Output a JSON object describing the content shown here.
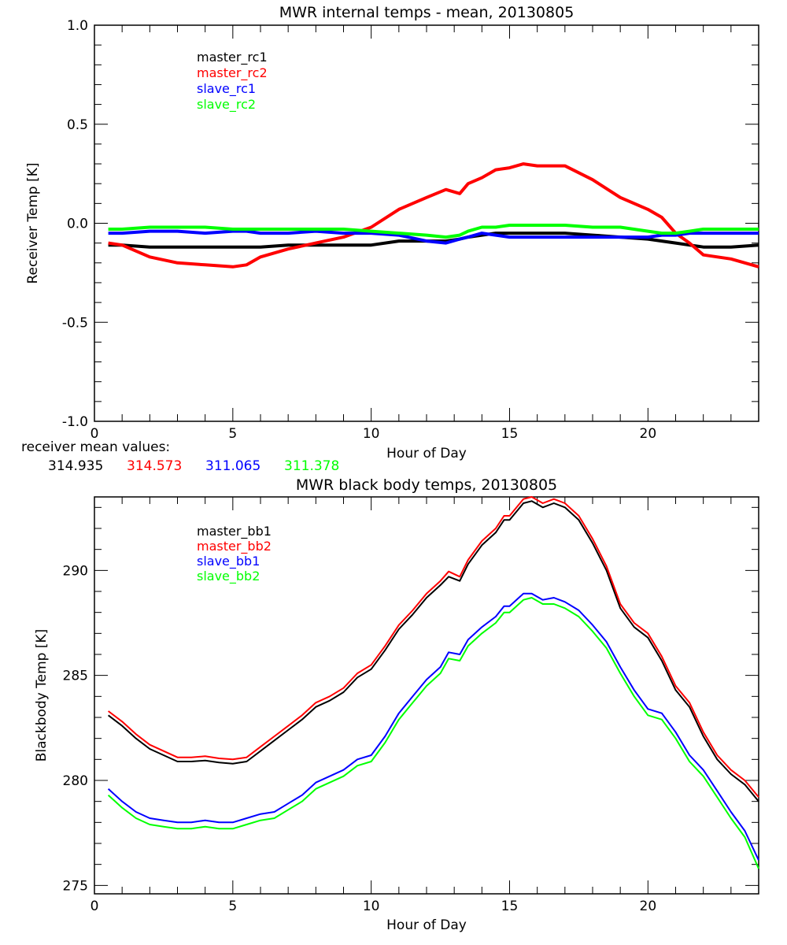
{
  "chart_data": [
    {
      "type": "line",
      "title": "MWR internal temps - mean, 20130805",
      "xlabel": "Hour of Day",
      "ylabel": "Receiver Temp [K]",
      "xlim": [
        0,
        24
      ],
      "ylim": [
        -1.0,
        1.0
      ],
      "xticks": [
        0,
        5,
        10,
        15,
        20
      ],
      "xtick_labels": [
        "0",
        "5",
        "10",
        "15",
        "20"
      ],
      "yticks": [
        -1.0,
        -0.5,
        0.0,
        0.5,
        1.0
      ],
      "ytick_labels": [
        "-1.0",
        "-0.5",
        "0.0",
        "0.5",
        "1.0"
      ],
      "grid": false,
      "legend_position": "top-left",
      "x": [
        0.5,
        1,
        2,
        3,
        4,
        5,
        5.5,
        6,
        7,
        8,
        9,
        10,
        11,
        12,
        12.7,
        13.2,
        13.5,
        14,
        14.5,
        15,
        15.5,
        16,
        17,
        18,
        19,
        20,
        20.5,
        21,
        21.5,
        22,
        23,
        24
      ],
      "series": [
        {
          "name": "master_rc1",
          "color": "#000000",
          "values": [
            -0.11,
            -0.11,
            -0.12,
            -0.12,
            -0.12,
            -0.12,
            -0.12,
            -0.12,
            -0.11,
            -0.11,
            -0.11,
            -0.11,
            -0.09,
            -0.09,
            -0.09,
            -0.08,
            -0.07,
            -0.06,
            -0.05,
            -0.05,
            -0.05,
            -0.05,
            -0.05,
            -0.06,
            -0.07,
            -0.08,
            -0.09,
            -0.1,
            -0.11,
            -0.12,
            -0.12,
            -0.11
          ]
        },
        {
          "name": "master_rc2",
          "color": "#ff0000",
          "values": [
            -0.1,
            -0.11,
            -0.17,
            -0.2,
            -0.21,
            -0.22,
            -0.21,
            -0.17,
            -0.13,
            -0.1,
            -0.07,
            -0.02,
            0.07,
            0.13,
            0.17,
            0.15,
            0.2,
            0.23,
            0.27,
            0.28,
            0.3,
            0.29,
            0.29,
            0.22,
            0.13,
            0.07,
            0.03,
            -0.05,
            -0.1,
            -0.16,
            -0.18,
            -0.22
          ]
        },
        {
          "name": "slave_rc1",
          "color": "#0000ff",
          "values": [
            -0.05,
            -0.05,
            -0.04,
            -0.04,
            -0.05,
            -0.04,
            -0.04,
            -0.05,
            -0.05,
            -0.04,
            -0.05,
            -0.05,
            -0.06,
            -0.09,
            -0.1,
            -0.08,
            -0.07,
            -0.05,
            -0.06,
            -0.07,
            -0.07,
            -0.07,
            -0.07,
            -0.07,
            -0.07,
            -0.07,
            -0.06,
            -0.06,
            -0.05,
            -0.05,
            -0.05,
            -0.05
          ]
        },
        {
          "name": "slave_rc2",
          "color": "#00ff00",
          "values": [
            -0.03,
            -0.03,
            -0.02,
            -0.02,
            -0.02,
            -0.03,
            -0.03,
            -0.03,
            -0.03,
            -0.03,
            -0.03,
            -0.04,
            -0.05,
            -0.06,
            -0.07,
            -0.06,
            -0.04,
            -0.02,
            -0.02,
            -0.01,
            -0.01,
            -0.01,
            -0.01,
            -0.02,
            -0.02,
            -0.04,
            -0.05,
            -0.05,
            -0.04,
            -0.03,
            -0.03,
            -0.03
          ]
        }
      ],
      "footer": {
        "label": "receiver mean values:",
        "values": [
          {
            "text": "314.935",
            "color": "#000000"
          },
          {
            "text": "314.573",
            "color": "#ff0000"
          },
          {
            "text": "311.065",
            "color": "#0000ff"
          },
          {
            "text": "311.378",
            "color": "#00ff00"
          }
        ]
      }
    },
    {
      "type": "line",
      "title": "MWR black body temps, 20130805",
      "xlabel": "Hour of Day",
      "ylabel": "Blackbody Temp [K]",
      "xlim": [
        0,
        24
      ],
      "ylim": [
        274.6,
        293.5
      ],
      "xticks": [
        0,
        5,
        10,
        15,
        20
      ],
      "xtick_labels": [
        "0",
        "5",
        "10",
        "15",
        "20"
      ],
      "yticks": [
        275,
        280,
        285,
        290
      ],
      "ytick_labels": [
        "275",
        "280",
        "285",
        "290"
      ],
      "grid": false,
      "legend_position": "top-left",
      "x": [
        0.5,
        1,
        1.5,
        2,
        2.5,
        3,
        3.5,
        4,
        4.5,
        5,
        5.5,
        6,
        6.5,
        7,
        7.5,
        8,
        8.5,
        9,
        9.5,
        10,
        10.5,
        11,
        11.5,
        12,
        12.5,
        12.8,
        13.2,
        13.5,
        14,
        14.5,
        14.8,
        15,
        15.5,
        15.8,
        16.2,
        16.6,
        17,
        17.5,
        18,
        18.5,
        19,
        19.5,
        20,
        20.5,
        21,
        21.5,
        22,
        22.5,
        23,
        23.5,
        24
      ],
      "series": [
        {
          "name": "master_bb1",
          "color": "#000000",
          "values": [
            283.1,
            282.6,
            282.0,
            281.5,
            281.2,
            280.9,
            280.9,
            280.95,
            280.85,
            280.8,
            280.9,
            281.4,
            281.9,
            282.4,
            282.9,
            283.5,
            283.8,
            284.2,
            284.9,
            285.3,
            286.2,
            287.2,
            287.9,
            288.7,
            289.3,
            289.7,
            289.5,
            290.3,
            291.2,
            291.8,
            292.4,
            292.4,
            293.2,
            293.3,
            293.0,
            293.2,
            293.0,
            292.4,
            291.3,
            290.0,
            288.2,
            287.3,
            286.8,
            285.7,
            284.3,
            283.5,
            282.1,
            281.0,
            280.3,
            279.8,
            279.0
          ]
        },
        {
          "name": "master_bb2",
          "color": "#ff0000",
          "values": [
            283.3,
            282.8,
            282.2,
            281.7,
            281.4,
            281.1,
            281.1,
            281.15,
            281.05,
            281.0,
            281.1,
            281.6,
            282.1,
            282.6,
            283.1,
            283.7,
            284.0,
            284.4,
            285.1,
            285.5,
            286.4,
            287.4,
            288.1,
            288.9,
            289.5,
            289.95,
            289.7,
            290.5,
            291.4,
            292.0,
            292.6,
            292.6,
            293.4,
            293.5,
            293.2,
            293.4,
            293.2,
            292.6,
            291.5,
            290.2,
            288.4,
            287.5,
            287.0,
            285.9,
            284.5,
            283.7,
            282.3,
            281.2,
            280.5,
            280.0,
            279.2
          ]
        },
        {
          "name": "slave_bb1",
          "color": "#0000ff",
          "values": [
            279.6,
            279.0,
            278.5,
            278.2,
            278.1,
            278.0,
            278.0,
            278.1,
            278.0,
            278.0,
            278.2,
            278.4,
            278.5,
            278.9,
            279.3,
            279.9,
            280.2,
            280.5,
            281.0,
            281.2,
            282.1,
            283.2,
            284.0,
            284.8,
            285.4,
            286.1,
            286.0,
            286.7,
            287.3,
            287.8,
            288.3,
            288.3,
            288.9,
            288.9,
            288.6,
            288.7,
            288.5,
            288.1,
            287.4,
            286.6,
            285.4,
            284.3,
            283.4,
            283.2,
            282.3,
            281.2,
            280.5,
            279.5,
            278.5,
            277.6,
            276.2
          ]
        },
        {
          "name": "slave_bb2",
          "color": "#00ff00",
          "values": [
            279.3,
            278.7,
            278.2,
            277.9,
            277.8,
            277.7,
            277.7,
            277.8,
            277.7,
            277.7,
            277.9,
            278.1,
            278.2,
            278.6,
            279.0,
            279.6,
            279.9,
            280.2,
            280.7,
            280.9,
            281.8,
            282.9,
            283.7,
            284.5,
            285.1,
            285.8,
            285.7,
            286.4,
            287.0,
            287.5,
            288.0,
            288.0,
            288.6,
            288.7,
            288.4,
            288.4,
            288.2,
            287.8,
            287.1,
            286.3,
            285.1,
            284.0,
            283.1,
            282.9,
            282.0,
            280.9,
            280.2,
            279.2,
            278.2,
            277.3,
            275.8
          ]
        }
      ]
    }
  ]
}
